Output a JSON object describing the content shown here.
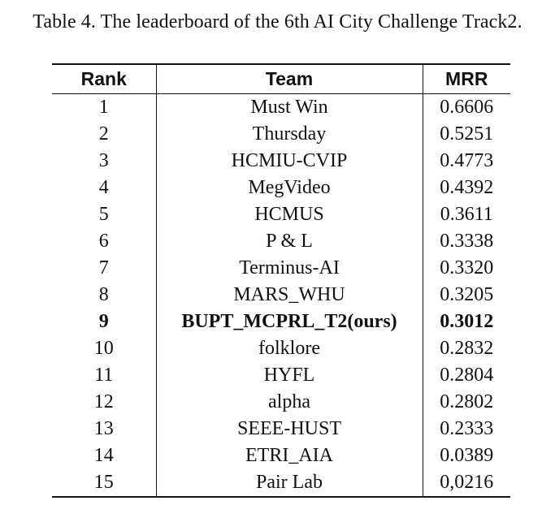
{
  "caption": "Table 4. The leaderboard of the 6th AI City Challenge Track2.",
  "table": {
    "headers": {
      "rank": "Rank",
      "team": "Team",
      "mrr": "MRR"
    },
    "highlight_rank": "9",
    "rows": [
      {
        "rank": "1",
        "team": "Must Win",
        "mrr": "0.6606"
      },
      {
        "rank": "2",
        "team": "Thursday",
        "mrr": "0.5251"
      },
      {
        "rank": "3",
        "team": "HCMIU-CVIP",
        "mrr": "0.4773"
      },
      {
        "rank": "4",
        "team": "MegVideo",
        "mrr": "0.4392"
      },
      {
        "rank": "5",
        "team": "HCMUS",
        "mrr": "0.3611"
      },
      {
        "rank": "6",
        "team": "P & L",
        "mrr": "0.3338"
      },
      {
        "rank": "7",
        "team": "Terminus-AI",
        "mrr": "0.3320"
      },
      {
        "rank": "8",
        "team": "MARS_WHU",
        "mrr": "0.3205"
      },
      {
        "rank": "9",
        "team": "BUPT_MCPRL_T2(ours)",
        "mrr": "0.3012"
      },
      {
        "rank": "10",
        "team": "folklore",
        "mrr": "0.2832"
      },
      {
        "rank": "11",
        "team": "HYFL",
        "mrr": "0.2804"
      },
      {
        "rank": "12",
        "team": "alpha",
        "mrr": "0.2802"
      },
      {
        "rank": "13",
        "team": "SEEE-HUST",
        "mrr": "0.2333"
      },
      {
        "rank": "14",
        "team": "ETRI_AIA",
        "mrr": "0.0389"
      },
      {
        "rank": "15",
        "team": "Pair Lab",
        "mrr": "0,0216"
      }
    ]
  }
}
